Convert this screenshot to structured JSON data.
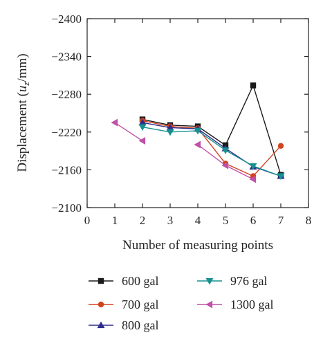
{
  "chart_data": {
    "type": "line",
    "title": "",
    "xlabel": "Number of measuring points",
    "ylabel_parts": {
      "main": "Displacement (",
      "var": "u",
      "sub": "z",
      "unit": "/mm)"
    },
    "xlim": [
      0,
      8
    ],
    "ylim": [
      -2100,
      -2400
    ],
    "y_axis_inverted": true,
    "x_ticks": [
      "0",
      "1",
      "2",
      "3",
      "4",
      "5",
      "6",
      "7",
      "8"
    ],
    "y_ticks": [
      "-2400",
      "-2340",
      "-2280",
      "-2220",
      "-2160",
      "-2100"
    ],
    "grid": false,
    "legend_position": "bottom",
    "series": [
      {
        "name": "600 gal",
        "color": "#1a1a1a",
        "marker": "square",
        "points": [
          [
            2,
            -2240
          ],
          [
            3,
            -2231
          ],
          [
            4,
            -2229
          ],
          [
            5,
            -2199
          ],
          [
            6,
            -2294
          ],
          [
            7,
            -2152
          ]
        ]
      },
      {
        "name": "700 gal",
        "color": "#d14420",
        "marker": "circle",
        "points": [
          [
            2,
            -2238
          ],
          [
            3,
            -2229
          ],
          [
            4,
            -2226
          ],
          [
            5,
            -2170
          ],
          [
            6,
            -2150
          ],
          [
            7,
            -2198
          ]
        ]
      },
      {
        "name": "800 gal",
        "color": "#2d2d8c",
        "marker": "triangle-up",
        "points": [
          [
            2,
            -2235
          ],
          [
            3,
            -2227
          ],
          [
            4,
            -2225
          ],
          [
            5,
            -2194
          ],
          [
            6,
            -2165
          ],
          [
            7,
            -2150
          ]
        ]
      },
      {
        "name": "976 gal",
        "color": "#169090",
        "marker": "triangle-down",
        "points": [
          [
            2,
            -2228
          ],
          [
            3,
            -2220
          ],
          [
            4,
            -2222
          ],
          [
            5,
            -2191
          ],
          [
            6,
            -2166
          ],
          [
            7,
            -2150
          ]
        ]
      },
      {
        "name": "1300 gal",
        "color": "#c050a8",
        "marker": "triangle-left",
        "segments": [
          [
            [
              1,
              -2235
            ],
            [
              2,
              -2206
            ]
          ],
          [
            [
              4,
              -2200
            ],
            [
              5,
              -2167
            ],
            [
              6,
              -2145
            ]
          ]
        ]
      }
    ]
  }
}
